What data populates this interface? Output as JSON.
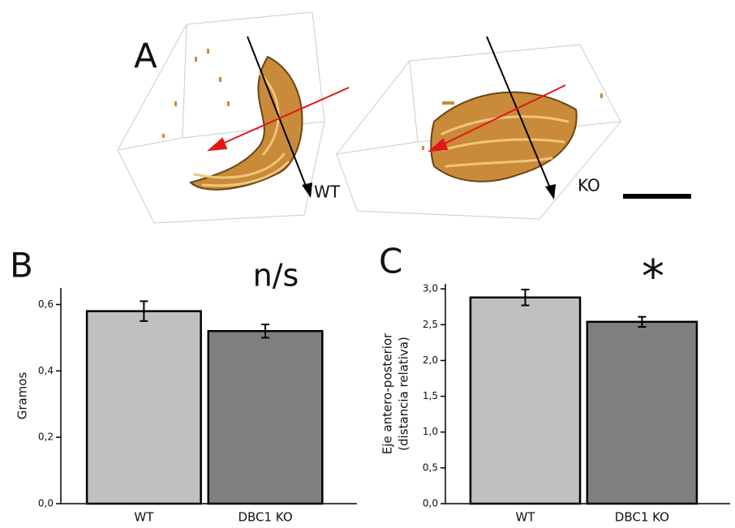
{
  "panel_a": {
    "label": "A",
    "wt_label": "WT",
    "ko_label": "KO"
  },
  "chart_data": [
    {
      "type": "bar",
      "panel_label": "B",
      "annotation": "n/s",
      "ylabel": [
        "Gramos"
      ],
      "categories": [
        "WT",
        "DBC1 KO"
      ],
      "values": [
        0.58,
        0.52
      ],
      "errors": [
        0.03,
        0.02
      ],
      "colors": [
        "#c0c0c0",
        "#7f7f7f"
      ],
      "ylim": [
        0,
        0.65
      ],
      "yticks": [
        {
          "value": 0,
          "label": "0,0"
        },
        {
          "value": 0.2,
          "label": "0,2"
        },
        {
          "value": 0.4,
          "label": "0,4"
        },
        {
          "value": 0.6,
          "label": "0,6"
        }
      ]
    },
    {
      "type": "bar",
      "panel_label": "C",
      "annotation": "*",
      "ylabel": [
        "Eje antero-posterior",
        "(distancia relativa)"
      ],
      "categories": [
        "WT",
        "DBC1 KO"
      ],
      "values": [
        2.88,
        2.54
      ],
      "errors": [
        0.11,
        0.07
      ],
      "colors": [
        "#c0c0c0",
        "#7f7f7f"
      ],
      "ylim": [
        0,
        3.07
      ],
      "yticks": [
        {
          "value": 0,
          "label": "0,0"
        },
        {
          "value": 0.5,
          "label": "0,5"
        },
        {
          "value": 1,
          "label": "1,0"
        },
        {
          "value": 1.5,
          "label": "1,5"
        },
        {
          "value": 2,
          "label": "2,0"
        },
        {
          "value": 2.5,
          "label": "2,5"
        },
        {
          "value": 3,
          "label": "3,0"
        }
      ]
    }
  ]
}
